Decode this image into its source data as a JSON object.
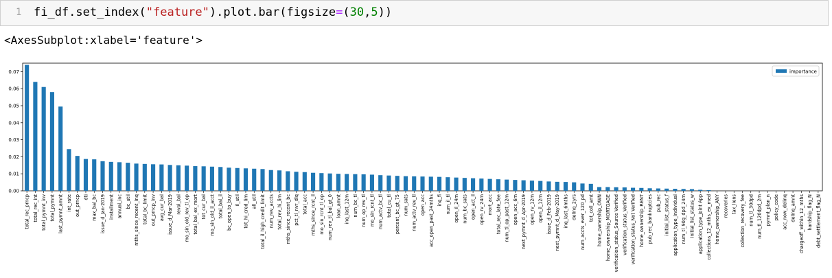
{
  "cell": {
    "prompt": "1",
    "code": {
      "p1": "fi_df.set_index(",
      "s1": "\"feature\"",
      "p2": ").plot.bar(figsize",
      "eq": "=",
      "p3": "(",
      "n1": "30",
      "p4": ",",
      "n2": "5",
      "p5": "))"
    }
  },
  "output": {
    "text": "<AxesSubplot:xlabel='feature'>"
  },
  "colors": {
    "bar": "#1f77b4"
  },
  "chart_data": {
    "type": "bar",
    "legend": {
      "position": "top-right",
      "entries": [
        "importance"
      ]
    },
    "ylim": [
      0,
      0.075
    ],
    "yticks": [
      "0.00",
      "0.01",
      "0.02",
      "0.03",
      "0.04",
      "0.05",
      "0.06",
      "0.07"
    ],
    "grid": false,
    "categories": [
      "total_rec_prncp",
      "total_rec_int",
      "total_pymnt_inv",
      "total_pymnt",
      "last_pymnt_amnt",
      "int_rate",
      "out_prncp",
      "dti",
      "max_bal_bc",
      "issue_d_Jan-2019",
      "installment",
      "annual_inc",
      "bc_util",
      "mths_since_recent_inq",
      "total_bc_limit",
      "out_prncp_inv",
      "avg_cur_bal",
      "issue_d_Mar-2019",
      "revol_bal",
      "mo_sin_old_rev_tl_op",
      "total_bal_ex_mort",
      "tot_cur_bal",
      "mo_sin_old_il_acct",
      "total_bal_il",
      "bc_open_to_buy",
      "il_util",
      "tot_hi_cred_lim",
      "all_util",
      "total_il_high_credit_limit",
      "num_rev_accts",
      "total_rev_hi_lim",
      "mths_since_recent_bc",
      "pct_tl_nvr_dlq",
      "total_acc",
      "mths_since_rcnt_il",
      "mo_sin_rcnt_tl_op",
      "num_rev_tl_bal_gt_0",
      "loan_amnt",
      "inq_last_12m",
      "num_bc_tl",
      "num_op_rev_tl",
      "mo_sin_rcnt_tl",
      "num_actv_bc_tl",
      "total_cu_tl",
      "percent_bc_gt_75",
      "num_sats",
      "num_actv_rev_tl",
      "open_acc",
      "acc_open_past_24mths",
      "inq_fi",
      "num_il_tl",
      "open_il_24m",
      "num_bc_sats",
      "open_act_il",
      "open_rv_24m",
      "mort_acc",
      "total_rec_late_fee",
      "num_tl_op_past_12m",
      "open_acc_6m",
      "next_pymnt_d_Apr-2019",
      "open_rv_12m",
      "open_il_12m",
      "issue_d_Feb-2019",
      "next_pymnt_d_May-2019",
      "inq_last_6mths",
      "delinq_2yrs",
      "num_accts_ever_120_pd",
      "tot_coll_amt",
      "home_ownership_OWN",
      "home_ownership_MORTGAGE",
      "verification_status_Source Verified",
      "verification_status_Verified",
      "verification_status_Not Verified",
      "home_ownership_RENT",
      "pub_rec_bankruptcies",
      "pub_rec",
      "initial_list_status_f",
      "application_type_Individual",
      "num_tl_90g_dpd_24m",
      "initial_list_status_w",
      "application_type_Joint App",
      "collections_12_mths_ex_med",
      "home_ownership_ANY",
      "recoveries",
      "tax_liens",
      "collection_recovery_fee",
      "num_tl_30dpd",
      "num_tl_120dpd_2m",
      "pymnt_plan_n",
      "policy_code",
      "acc_now_delinq",
      "delinq_amnt",
      "chargeoff_within_12_mths",
      "hardship_flag_N",
      "debt_settlement_flag_N"
    ],
    "series": [
      {
        "name": "importance",
        "values": [
          0.074,
          0.064,
          0.061,
          0.058,
          0.0495,
          0.0245,
          0.0205,
          0.0187,
          0.0185,
          0.0174,
          0.017,
          0.0168,
          0.0165,
          0.016,
          0.0158,
          0.0156,
          0.0155,
          0.0152,
          0.015,
          0.0148,
          0.0145,
          0.0144,
          0.0142,
          0.014,
          0.0136,
          0.0134,
          0.0132,
          0.013,
          0.0128,
          0.0122,
          0.012,
          0.0115,
          0.0112,
          0.011,
          0.0106,
          0.0104,
          0.0102,
          0.01,
          0.0099,
          0.0098,
          0.0097,
          0.0095,
          0.0092,
          0.009,
          0.0088,
          0.0086,
          0.0085,
          0.0084,
          0.0083,
          0.0082,
          0.008,
          0.0078,
          0.0076,
          0.0074,
          0.0072,
          0.007,
          0.0068,
          0.0066,
          0.0064,
          0.0062,
          0.006,
          0.0058,
          0.0055,
          0.0053,
          0.0052,
          0.005,
          0.0043,
          0.0041,
          0.0022,
          0.0022,
          0.0021,
          0.002,
          0.0018,
          0.0017,
          0.0015,
          0.0014,
          0.0013,
          0.0012,
          0.0011,
          0.001,
          0.0006,
          0.0004,
          0,
          0,
          0,
          0,
          0,
          0,
          0,
          0,
          0,
          0,
          0,
          0,
          0
        ]
      }
    ]
  }
}
